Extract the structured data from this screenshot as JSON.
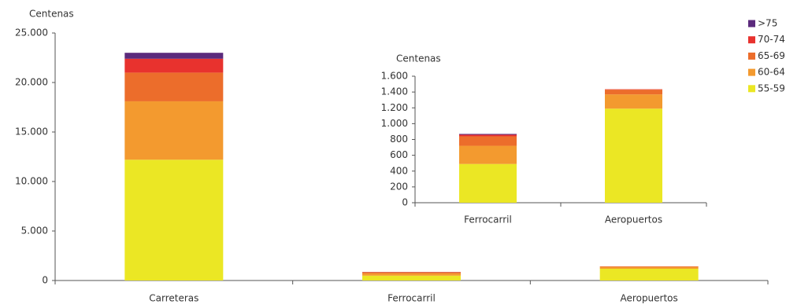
{
  "chart_data": [
    {
      "type": "stacked-bar",
      "y_label": "Centenas",
      "categories": [
        "Carreteras",
        "Ferrocarril",
        "Aeropuertos"
      ],
      "series": [
        {
          "name": "55-59",
          "color": "#ebe724",
          "values": [
            12200,
            490,
            1190
          ]
        },
        {
          "name": "60-64",
          "color": "#f39a2f",
          "values": [
            5900,
            230,
            180
          ]
        },
        {
          "name": "65-69",
          "color": "#ec6d2b",
          "values": [
            2900,
            120,
            60
          ]
        },
        {
          "name": "70-74",
          "color": "#e8322e",
          "values": [
            1400,
            20,
            5
          ]
        },
        {
          "name": ">75",
          "color": "#5b2a7c",
          "values": [
            600,
            10,
            0
          ]
        }
      ],
      "ylim": [
        0,
        25000
      ],
      "yticks": [
        0,
        {
          "value": 5000,
          "label": "5.000"
        },
        {
          "value": 10000,
          "label": "10.000"
        },
        {
          "value": 15000,
          "label": "15.000"
        },
        {
          "value": 20000,
          "label": "20.000"
        },
        {
          "value": 25000,
          "label": "25.000"
        }
      ],
      "legend": "top-right"
    },
    {
      "type": "stacked-bar",
      "y_label": "Centenas",
      "categories": [
        "Ferrocarril",
        "Aeropuertos"
      ],
      "series": [
        {
          "color": "#ebe724",
          "values": [
            490,
            1190
          ]
        },
        {
          "color": "#f39a2f",
          "values": [
            230,
            180
          ]
        },
        {
          "color": "#ec6d2b",
          "values": [
            120,
            60
          ]
        },
        {
          "color": "#e8322e",
          "values": [
            20,
            5
          ]
        },
        {
          "color": "#5b2a7c",
          "values": [
            10,
            0
          ]
        }
      ],
      "ylim": [
        0,
        1600
      ],
      "yticks": [
        0,
        200,
        400,
        600,
        800,
        {
          "value": 1000,
          "label": "1.000"
        },
        {
          "value": 1200,
          "label": "1.200"
        },
        {
          "value": 1400,
          "label": "1.400"
        },
        {
          "value": 1600,
          "label": "1.600"
        }
      ]
    }
  ]
}
